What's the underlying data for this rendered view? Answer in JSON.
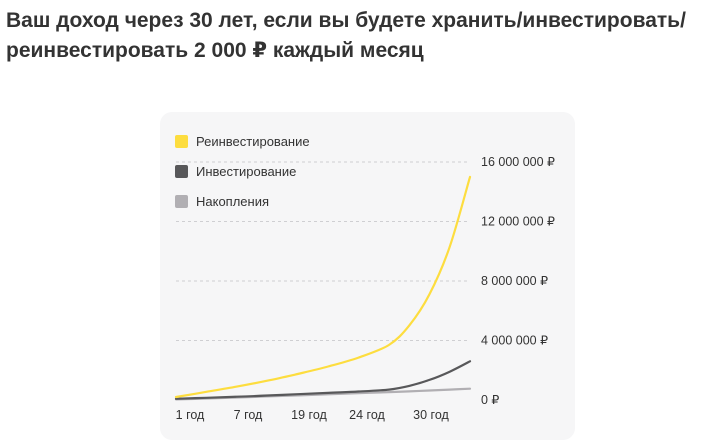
{
  "headline": "Ваш доход через 30 лет, если вы будете хранить/инвестировать/реинвестировать 2 000 ₽ каждый месяц",
  "chart_data": {
    "type": "line",
    "title": "",
    "xlabel": "",
    "ylabel": "",
    "categories": [
      "1 год",
      "7 год",
      "19 год",
      "24 год",
      "30 год"
    ],
    "x": [
      1,
      4,
      7,
      10,
      13,
      16,
      19,
      22,
      24,
      26,
      28,
      30
    ],
    "ylim": [
      0,
      16000000
    ],
    "yticks": [
      0,
      4000000,
      8000000,
      12000000,
      16000000
    ],
    "ytick_labels": [
      "0 ₽",
      "4 000 000 ₽",
      "8 000 000 ₽",
      "12 000 000 ₽",
      "16 000 000 ₽"
    ],
    "grid": "horizontal-dashed",
    "legend_position": "top-left",
    "series": [
      {
        "name": "Реинвестирование",
        "color": "#fddd3f",
        "values": [
          200000,
          550000,
          900000,
          1300000,
          1750000,
          2250000,
          2850000,
          3700000,
          5000000,
          7100000,
          10300000,
          15000000
        ]
      },
      {
        "name": "Инвестирование",
        "color": "#58585a",
        "values": [
          80000,
          150000,
          220000,
          300000,
          390000,
          480000,
          570000,
          700000,
          950000,
          1350000,
          1900000,
          2600000
        ]
      },
      {
        "name": "Накопления",
        "color": "#b1afb3",
        "values": [
          40000,
          100000,
          170000,
          240000,
          310000,
          380000,
          460000,
          530000,
          580000,
          640000,
          700000,
          760000
        ]
      }
    ]
  }
}
